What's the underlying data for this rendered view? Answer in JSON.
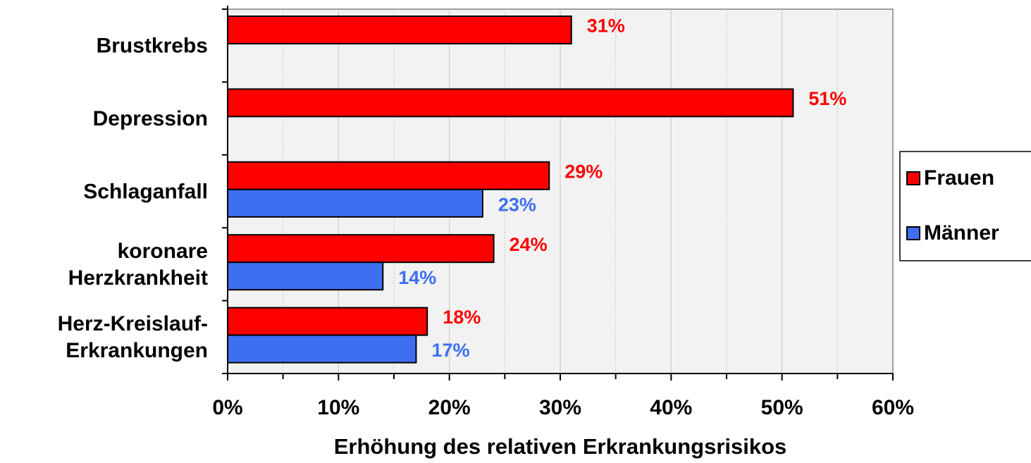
{
  "chart_data": {
    "type": "bar",
    "orientation": "horizontal",
    "x_label": "Erhöhung des relativen Erkrankungsrisikos",
    "categories": [
      [
        "Brustkrebs"
      ],
      [
        "Depression"
      ],
      [
        "Schlaganfall"
      ],
      [
        "koronare",
        "Herzkrankheit"
      ],
      [
        "Herz-Kreislauf-",
        "Erkrankungen"
      ]
    ],
    "series": [
      {
        "name": "Frauen",
        "color": "#ff0000",
        "label_color": "#ff0000",
        "values": [
          31,
          51,
          29,
          24,
          18
        ],
        "value_labels": [
          "31%",
          "51%",
          "29%",
          "24%",
          "18%"
        ]
      },
      {
        "name": "Männer",
        "color": "#3d6ff0",
        "label_color": "#3d6ff0",
        "values": [
          null,
          null,
          23,
          14,
          17
        ],
        "value_labels": [
          null,
          null,
          "23%",
          "14%",
          "17%"
        ]
      }
    ],
    "xlim": [
      0,
      60
    ],
    "xticks": [
      {
        "value": 0,
        "label": "0%"
      },
      {
        "value": 10,
        "label": "10%"
      },
      {
        "value": 20,
        "label": "20%"
      },
      {
        "value": 30,
        "label": "30%"
      },
      {
        "value": 40,
        "label": "40%"
      },
      {
        "value": 50,
        "label": "50%"
      },
      {
        "value": 60,
        "label": "60%"
      }
    ],
    "minor_xticks": [
      5,
      15,
      25,
      35,
      45,
      55
    ],
    "grid": true,
    "legend": "right"
  }
}
